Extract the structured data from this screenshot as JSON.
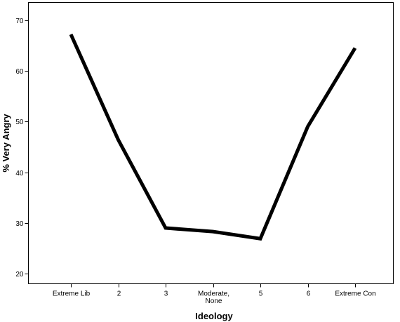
{
  "chart_data": {
    "type": "line",
    "title": "",
    "xlabel": "Ideology",
    "ylabel": "% Very Angry",
    "categories": [
      [
        "Extreme Lib"
      ],
      [
        "2"
      ],
      [
        "3"
      ],
      [
        "Moderate,",
        "None"
      ],
      [
        "5"
      ],
      [
        "6"
      ],
      [
        "Extreme Con"
      ]
    ],
    "series": [
      {
        "values": [
          67.2,
          46.4,
          29.0,
          28.3,
          26.9,
          49.0,
          64.5
        ]
      }
    ],
    "yticks": [
      20,
      30,
      40,
      50,
      60,
      70
    ],
    "ylim": [
      18,
      73.5
    ],
    "grid": false,
    "legend": "none",
    "line_color": "#000000"
  }
}
